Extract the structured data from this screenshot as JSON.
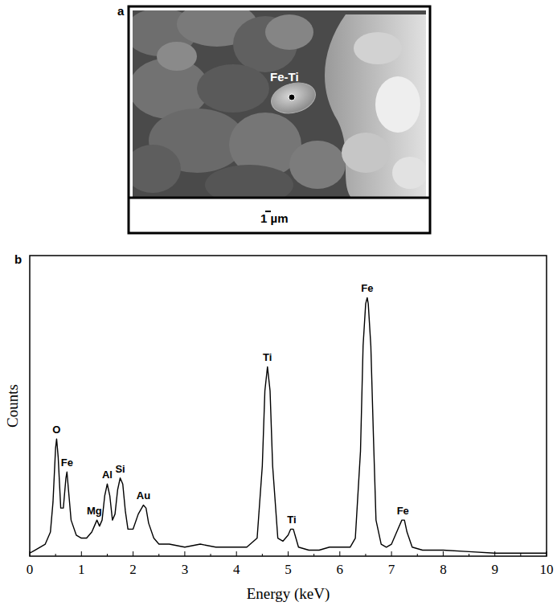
{
  "panels": [
    {
      "letter": "a",
      "image_label": "Fe-Ti",
      "scale_bar": "1 µm"
    },
    {
      "letter": "b"
    }
  ],
  "chart_data": {
    "type": "line",
    "color": "#000000",
    "x_label": "Energy (keV)",
    "y_label": "Counts",
    "xlim": [
      0,
      10
    ],
    "ylim": [
      0,
      100
    ],
    "xticks": [
      0,
      1,
      2,
      3,
      4,
      5,
      6,
      7,
      8,
      9,
      10
    ],
    "tick_labels": "x",
    "grid": false,
    "x": [
      0,
      0.1,
      0.2,
      0.3,
      0.4,
      0.45,
      0.5,
      0.52,
      0.55,
      0.6,
      0.65,
      0.7,
      0.72,
      0.75,
      0.8,
      0.9,
      1.0,
      1.1,
      1.2,
      1.25,
      1.3,
      1.35,
      1.4,
      1.45,
      1.5,
      1.55,
      1.6,
      1.65,
      1.7,
      1.75,
      1.8,
      1.85,
      1.9,
      2.0,
      2.1,
      2.2,
      2.25,
      2.3,
      2.4,
      2.5,
      2.7,
      3.0,
      3.3,
      3.6,
      3.9,
      4.2,
      4.4,
      4.5,
      4.55,
      4.6,
      4.65,
      4.7,
      4.8,
      4.9,
      5.0,
      5.05,
      5.1,
      5.15,
      5.2,
      5.4,
      5.6,
      5.8,
      6.0,
      6.2,
      6.3,
      6.4,
      6.45,
      6.5,
      6.53,
      6.55,
      6.6,
      6.65,
      6.7,
      6.8,
      6.9,
      7.0,
      7.1,
      7.2,
      7.25,
      7.3,
      7.4,
      7.6,
      8.0,
      8.5,
      9.0,
      9.5,
      10
    ],
    "values": [
      1,
      2,
      3,
      4,
      8,
      18,
      36,
      39,
      33,
      16,
      16,
      26,
      28,
      22,
      12,
      7,
      6,
      6,
      8,
      10,
      12,
      10,
      12,
      20,
      24,
      20,
      12,
      14,
      22,
      26,
      24,
      15,
      9,
      9,
      14,
      17,
      16,
      11,
      6,
      4,
      4,
      3,
      4,
      3,
      3,
      3,
      6,
      30,
      55,
      63,
      55,
      30,
      6,
      5,
      7,
      9,
      9,
      6,
      3,
      2,
      2,
      3,
      3,
      3,
      6,
      35,
      70,
      84,
      86,
      84,
      70,
      40,
      12,
      4,
      3,
      4,
      8,
      12,
      12,
      8,
      3,
      2,
      2,
      1.5,
      1,
      1,
      1
    ],
    "annotations": [
      {
        "text": "O",
        "x": 0.52,
        "y": 39
      },
      {
        "text": "Fe",
        "x": 0.72,
        "y": 28
      },
      {
        "text": "Mg",
        "x": 1.25,
        "y": 12
      },
      {
        "text": "Al",
        "x": 1.5,
        "y": 24
      },
      {
        "text": "Si",
        "x": 1.75,
        "y": 26
      },
      {
        "text": "Au",
        "x": 2.2,
        "y": 17
      },
      {
        "text": "Ti",
        "x": 4.6,
        "y": 63
      },
      {
        "text": "Ti",
        "x": 5.07,
        "y": 9
      },
      {
        "text": "Fe",
        "x": 6.53,
        "y": 86
      },
      {
        "text": "Fe",
        "x": 7.22,
        "y": 12
      }
    ]
  }
}
